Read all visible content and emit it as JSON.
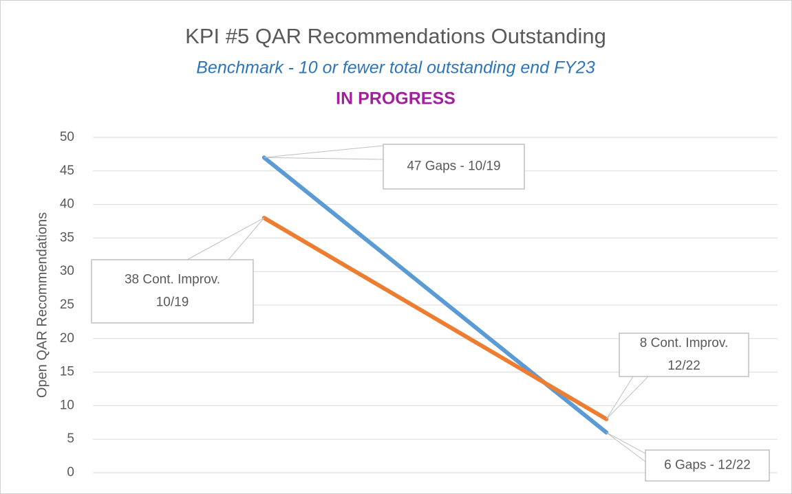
{
  "chart_data": {
    "type": "line",
    "title": "KPI #5 QAR Recommendations  Outstanding",
    "subtitle": "Benchmark - 10 or fewer total outstanding end FY23",
    "status": "IN PROGRESS",
    "ylabel": "Open QAR Recommendations",
    "categories": [
      null,
      null
    ],
    "series": [
      {
        "color": "#5b9bd5",
        "values": [
          47,
          6
        ]
      },
      {
        "color": "#ed7d31",
        "values": [
          38,
          8
        ]
      }
    ],
    "ylim": [
      0,
      50
    ],
    "yticks": [
      0,
      5,
      10,
      15,
      20,
      25,
      30,
      35,
      40,
      45,
      50
    ],
    "grid": true,
    "annotations": [
      {
        "lines": [
          "47 Gaps - 10/19"
        ]
      },
      {
        "lines": [
          "38 Cont. Improv.",
          "10/19"
        ]
      },
      {
        "lines": [
          "8 Cont. Improv.",
          "12/22"
        ]
      },
      {
        "lines": [
          "6 Gaps - 12/22"
        ]
      }
    ]
  }
}
